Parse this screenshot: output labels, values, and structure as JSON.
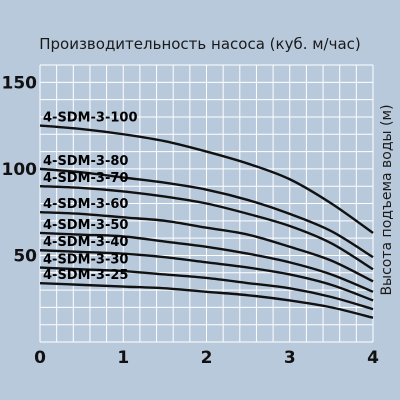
{
  "chart_data": {
    "type": "line",
    "title": "Производительность насоса (куб. м/час)",
    "xlabel": "",
    "ylabel": "Высота подъема воды (м)",
    "xlim": [
      0,
      4
    ],
    "ylim": [
      0,
      160
    ],
    "x_ticks": [
      "0",
      "1",
      "2",
      "3",
      "4"
    ],
    "y_ticks": [
      "50",
      "100",
      "150"
    ],
    "y_tick_values": [
      50,
      100,
      150
    ],
    "grid": true,
    "x": [
      0,
      0.5,
      1,
      1.5,
      2,
      2.5,
      3,
      3.5,
      4
    ],
    "series": [
      {
        "name": "4-SDM-3-100",
        "values": [
          125,
          123,
          120,
          116,
          110,
          103,
          94,
          80,
          63
        ]
      },
      {
        "name": "4-SDM-3-80",
        "values": [
          100,
          98,
          95,
          92,
          88,
          82,
          74,
          64,
          49
        ]
      },
      {
        "name": "4-SDM-3-70",
        "values": [
          90,
          89,
          87,
          84,
          80,
          74,
          67,
          57,
          42
        ]
      },
      {
        "name": "4-SDM-3-60",
        "values": [
          75,
          74,
          72,
          70,
          66,
          62,
          55,
          47,
          35
        ]
      },
      {
        "name": "4-SDM-3-50",
        "values": [
          63,
          62,
          61,
          58,
          55,
          51,
          46,
          39,
          29
        ]
      },
      {
        "name": "4-SDM-3-40",
        "values": [
          53,
          52,
          51,
          49,
          46,
          43,
          39,
          33,
          24
        ]
      },
      {
        "name": "4-SDM-3-30",
        "values": [
          43,
          42,
          41,
          39,
          37,
          34,
          31,
          26,
          19
        ]
      },
      {
        "name": "4-SDM-3-25",
        "values": [
          34,
          33,
          32,
          31,
          29,
          27,
          24,
          20,
          14
        ]
      }
    ]
  },
  "colors": {
    "background": "#b9c9dc",
    "grid": "#ffffff",
    "curve": "#111111"
  }
}
